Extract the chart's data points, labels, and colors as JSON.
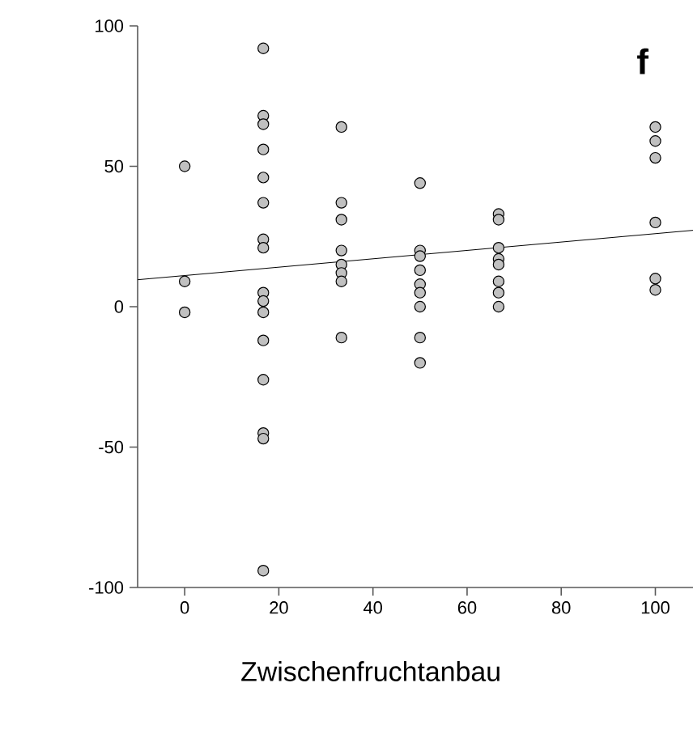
{
  "chart_data": {
    "type": "scatter",
    "xlabel": "Zwischenfruchtanbau",
    "annotations": [
      "f"
    ],
    "xlim": [
      -10,
      108
    ],
    "ylim": [
      -100,
      100
    ],
    "xticks": [
      0,
      20,
      40,
      60,
      80,
      100
    ],
    "yticks": [
      -100,
      -50,
      0,
      50,
      100
    ],
    "grid": false,
    "series": [
      {
        "color": "#c0c0c0",
        "marker": "circle",
        "x": [
          0,
          0,
          0,
          16.7,
          16.7,
          16.7,
          16.7,
          16.7,
          16.7,
          16.7,
          16.7,
          16.7,
          16.7,
          16.7,
          16.7,
          16.7,
          16.7,
          16.7,
          16.7,
          33.3,
          33.3,
          33.3,
          33.3,
          33.3,
          33.3,
          33.3,
          33.3,
          50,
          50,
          50,
          50,
          50,
          50,
          50,
          50,
          50,
          66.7,
          66.7,
          66.7,
          66.7,
          66.7,
          66.7,
          66.7,
          66.7,
          100,
          100,
          100,
          100,
          100,
          100
        ],
        "values": [
          50,
          9,
          -2,
          92,
          68,
          65,
          56,
          46,
          37,
          24,
          21,
          5,
          2,
          -2,
          -12,
          -26,
          -45,
          -47,
          -94,
          64,
          37,
          31,
          20,
          15,
          12,
          9,
          -11,
          44,
          20,
          18,
          13,
          8,
          5,
          0,
          -11,
          -20,
          33,
          31,
          21,
          17,
          15,
          9,
          5,
          0,
          64,
          59,
          53,
          30,
          10,
          6
        ]
      },
      {
        "type": "line",
        "color": "#000000",
        "marker": "none",
        "line_style": "solid",
        "x": [
          -10,
          108
        ],
        "values": [
          9.6,
          27.2
        ]
      }
    ]
  }
}
